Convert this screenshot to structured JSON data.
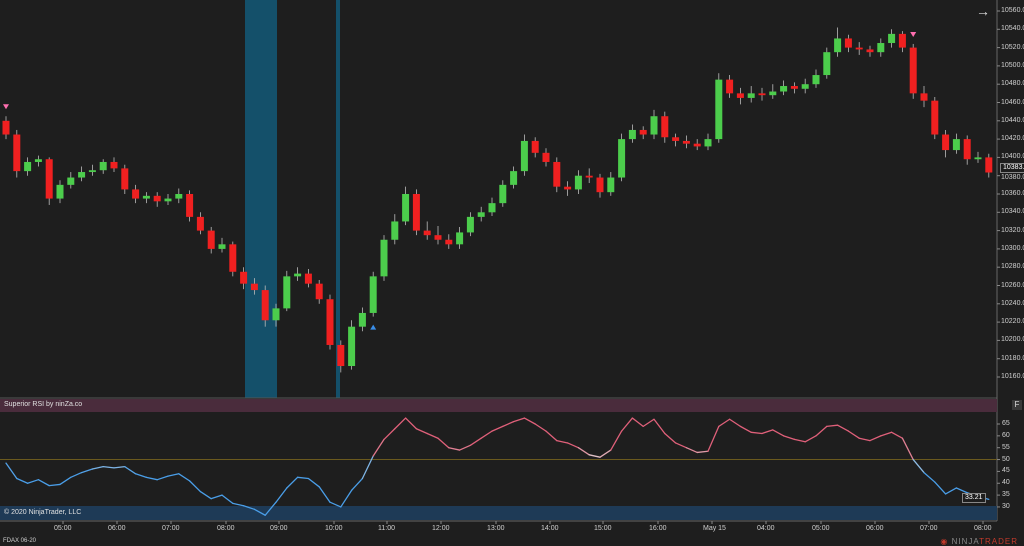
{
  "instrument": "FDAX 06-20",
  "copyright": "© 2020 NinjaTrader, LLC",
  "logo_text": "NINJATRADER",
  "logo_accent": "TRADER",
  "indicator_label": "Superior RSI by ninZa.co",
  "panel_button": "F",
  "nav_icon": "arrow-right-icon",
  "colors": {
    "background": "#1e1e1e",
    "up": "#4ccd4c",
    "down": "#f02020",
    "rsi_low": "#4a9ee8",
    "rsi_high": "#e0607a",
    "band_top": "#4a2c3c",
    "band_bottom": "#1e3a56",
    "highlight": "#14506a",
    "midline": "#6b5a1e"
  },
  "chart_data": [
    {
      "type": "candlestick",
      "ylim": [
        10150,
        10570
      ],
      "yticks": [
        "10560.0",
        "10540.0",
        "10520.0",
        "10500.0",
        "10480.0",
        "10460.0",
        "10440.0",
        "10420.0",
        "10400.0",
        "10380.0",
        "10360.0",
        "10340.0",
        "10320.0",
        "10300.0",
        "10280.0",
        "10260.0",
        "10240.0",
        "10220.0",
        "10200.0",
        "10180.0",
        "10160.0"
      ],
      "last_price": "10383.5",
      "candles": [
        [
          10440,
          10445,
          10420,
          10425
        ],
        [
          10425,
          10430,
          10378,
          10385
        ],
        [
          10385,
          10400,
          10380,
          10395
        ],
        [
          10395,
          10402,
          10390,
          10398
        ],
        [
          10398,
          10400,
          10348,
          10355
        ],
        [
          10355,
          10375,
          10350,
          10370
        ],
        [
          10370,
          10384,
          10366,
          10378
        ],
        [
          10378,
          10390,
          10374,
          10384
        ],
        [
          10384,
          10392,
          10380,
          10386
        ],
        [
          10386,
          10398,
          10382,
          10395
        ],
        [
          10395,
          10400,
          10384,
          10388
        ],
        [
          10388,
          10392,
          10360,
          10365
        ],
        [
          10365,
          10370,
          10350,
          10355
        ],
        [
          10355,
          10362,
          10350,
          10358
        ],
        [
          10358,
          10362,
          10346,
          10352
        ],
        [
          10352,
          10360,
          10348,
          10355
        ],
        [
          10355,
          10366,
          10350,
          10360
        ],
        [
          10360,
          10364,
          10330,
          10335
        ],
        [
          10335,
          10340,
          10316,
          10320
        ],
        [
          10320,
          10324,
          10295,
          10300
        ],
        [
          10300,
          10312,
          10296,
          10305
        ],
        [
          10305,
          10308,
          10270,
          10275
        ],
        [
          10275,
          10280,
          10256,
          10262
        ],
        [
          10262,
          10268,
          10250,
          10255
        ],
        [
          10255,
          10260,
          10215,
          10222
        ],
        [
          10222,
          10240,
          10215,
          10235
        ],
        [
          10235,
          10276,
          10232,
          10270
        ],
        [
          10270,
          10280,
          10265,
          10273
        ],
        [
          10273,
          10278,
          10258,
          10262
        ],
        [
          10262,
          10266,
          10240,
          10245
        ],
        [
          10245,
          10250,
          10190,
          10195
        ],
        [
          10195,
          10200,
          10165,
          10172
        ],
        [
          10172,
          10222,
          10168,
          10215
        ],
        [
          10215,
          10236,
          10210,
          10230
        ],
        [
          10230,
          10275,
          10226,
          10270
        ],
        [
          10270,
          10315,
          10265,
          10310
        ],
        [
          10310,
          10338,
          10305,
          10330
        ],
        [
          10330,
          10368,
          10326,
          10360
        ],
        [
          10360,
          10365,
          10315,
          10320
        ],
        [
          10320,
          10330,
          10310,
          10315
        ],
        [
          10315,
          10325,
          10305,
          10310
        ],
        [
          10310,
          10316,
          10300,
          10305
        ],
        [
          10305,
          10324,
          10300,
          10318
        ],
        [
          10318,
          10340,
          10314,
          10335
        ],
        [
          10335,
          10346,
          10330,
          10340
        ],
        [
          10340,
          10356,
          10336,
          10350
        ],
        [
          10350,
          10375,
          10346,
          10370
        ],
        [
          10370,
          10390,
          10366,
          10385
        ],
        [
          10385,
          10425,
          10380,
          10418
        ],
        [
          10418,
          10422,
          10400,
          10405
        ],
        [
          10405,
          10410,
          10390,
          10395
        ],
        [
          10395,
          10400,
          10362,
          10368
        ],
        [
          10368,
          10374,
          10358,
          10365
        ],
        [
          10365,
          10386,
          10360,
          10380
        ],
        [
          10380,
          10388,
          10372,
          10378
        ],
        [
          10378,
          10382,
          10356,
          10362
        ],
        [
          10362,
          10384,
          10358,
          10378
        ],
        [
          10378,
          10426,
          10374,
          10420
        ],
        [
          10420,
          10436,
          10416,
          10430
        ],
        [
          10430,
          10434,
          10420,
          10425
        ],
        [
          10425,
          10452,
          10420,
          10445
        ],
        [
          10445,
          10450,
          10416,
          10422
        ],
        [
          10422,
          10426,
          10412,
          10418
        ],
        [
          10418,
          10424,
          10410,
          10415
        ],
        [
          10415,
          10420,
          10408,
          10412
        ],
        [
          10412,
          10426,
          10408,
          10420
        ],
        [
          10420,
          10492,
          10416,
          10485
        ],
        [
          10485,
          10490,
          10465,
          10470
        ],
        [
          10470,
          10476,
          10458,
          10465
        ],
        [
          10465,
          10478,
          10460,
          10470
        ],
        [
          10470,
          10476,
          10462,
          10468
        ],
        [
          10468,
          10480,
          10464,
          10472
        ],
        [
          10472,
          10484,
          10468,
          10478
        ],
        [
          10478,
          10482,
          10470,
          10475
        ],
        [
          10475,
          10486,
          10470,
          10480
        ],
        [
          10480,
          10496,
          10476,
          10490
        ],
        [
          10490,
          10520,
          10486,
          10515
        ],
        [
          10515,
          10542,
          10510,
          10530
        ],
        [
          10530,
          10534,
          10515,
          10520
        ],
        [
          10520,
          10526,
          10512,
          10518
        ],
        [
          10518,
          10522,
          10510,
          10515
        ],
        [
          10515,
          10530,
          10510,
          10525
        ],
        [
          10525,
          10540,
          10520,
          10535
        ],
        [
          10535,
          10538,
          10515,
          10520
        ],
        [
          10520,
          10524,
          10464,
          10470
        ],
        [
          10470,
          10478,
          10455,
          10462
        ],
        [
          10462,
          10466,
          10420,
          10425
        ],
        [
          10425,
          10430,
          10400,
          10408
        ],
        [
          10408,
          10426,
          10404,
          10420
        ],
        [
          10420,
          10424,
          10392,
          10398
        ],
        [
          10398,
          10406,
          10394,
          10400
        ],
        [
          10400,
          10404,
          10378,
          10383.5
        ]
      ],
      "signals": [
        {
          "bar": 0,
          "dir": "down"
        },
        {
          "bar": 84,
          "dir": "down"
        },
        {
          "bar": 34,
          "dir": "up"
        }
      ],
      "xticks": [
        "05:00",
        "06:00",
        "07:00",
        "08:00",
        "09:00",
        "10:00",
        "11:00",
        "12:00",
        "13:00",
        "14:00",
        "15:00",
        "16:00",
        "May 15",
        "04:00",
        "05:00",
        "06:00",
        "07:00",
        "08:00"
      ]
    },
    {
      "type": "line",
      "title": "Superior RSI by ninZa.co",
      "ylim": [
        24,
        72
      ],
      "yticks": [
        "65",
        "60",
        "55",
        "50",
        "45",
        "40",
        "35",
        "30"
      ],
      "midline": 50,
      "upper_band": 70,
      "lower_band": 30,
      "last_value": "33.21",
      "values": [
        48.5,
        42,
        40,
        41.5,
        39,
        39.5,
        42.5,
        44.5,
        46,
        47,
        46.5,
        47,
        44,
        42.5,
        41.5,
        43,
        44,
        41,
        36.5,
        33.5,
        35,
        31.5,
        30.5,
        29,
        26.5,
        32,
        38,
        42.5,
        42,
        38.5,
        32,
        30,
        37,
        42,
        51.5,
        58.5,
        63,
        67.5,
        63,
        61,
        59,
        55,
        54,
        56,
        59,
        62,
        64,
        66,
        67.5,
        65,
        62,
        58,
        57,
        55,
        52,
        51,
        54,
        62,
        67.5,
        64,
        67,
        61,
        57,
        55,
        53,
        53.5,
        64,
        67,
        64,
        61.5,
        61,
        62.5,
        60,
        58.5,
        57.5,
        60,
        64,
        64.5,
        62,
        59,
        58,
        60,
        61.5,
        59,
        50,
        44.5,
        40.5,
        35.5,
        38,
        36,
        34.5,
        33.21
      ]
    }
  ]
}
